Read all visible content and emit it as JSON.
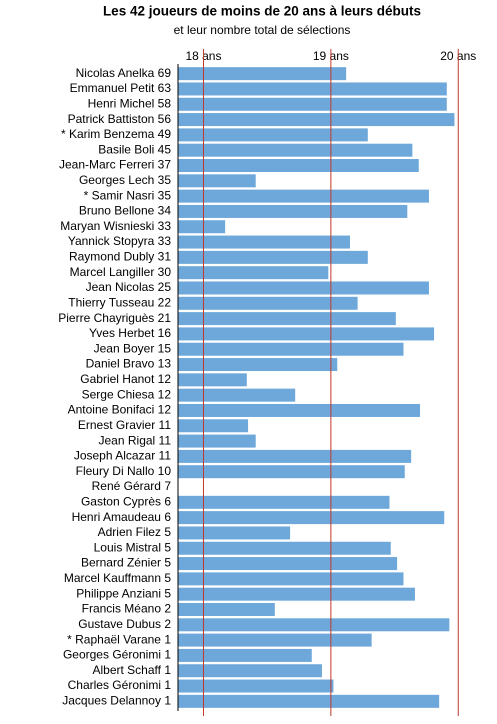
{
  "chart_data": {
    "type": "barh",
    "title": "Les 42 joueurs de moins de 20 ans à leurs débuts",
    "subtitle": "et leur nombre total de sélections",
    "categories": [
      "Nicolas Anelka 69",
      "Emmanuel Petit 63",
      "Henri Michel 58",
      "Patrick Battiston 56",
      "* Karim Benzema 49",
      "Basile Boli 45",
      "Jean-Marc Ferreri 37",
      "Georges Lech 35",
      "* Samir Nasri 35",
      "Bruno Bellone 34",
      "Maryan Wisnieski 33",
      "Yannick Stopyra 33",
      "Raymond Dubly 31",
      "Marcel Langiller 30",
      "Jean Nicolas 25",
      "Thierry Tusseau 22",
      "Pierre Chayriguès 21",
      "Yves Herbet 16",
      "Jean Boyer 15",
      "Daniel Bravo 13",
      "Gabriel Hanot 12",
      "Serge Chiesa 12",
      "Antoine Bonifaci 12",
      "Ernest Gravier 11",
      "Jean Rigal 11",
      "Joseph Alcazar 11",
      "Fleury Di Nallo 10",
      "René Gérard 7",
      "Gaston Cyprès 6",
      "Henri Amaudeau 6",
      "Adrien Filez 5",
      "Louis Mistral 5",
      "Bernard Zénier 5",
      "Marcel Kauffmann 5",
      "Philippe Anziani 5",
      "Francis Méano 2",
      "Gustave Dubus 2",
      "* Raphaël Varane 1",
      "Georges Géronimi 1",
      "Albert Schaff 1",
      "Charles Géronimi 1",
      "Jacques Delannoy 1"
    ],
    "values": [
      19.12,
      19.91,
      19.91,
      19.97,
      19.29,
      19.64,
      19.69,
      18.41,
      19.77,
      19.6,
      18.17,
      19.15,
      19.29,
      18.98,
      19.77,
      19.21,
      19.51,
      19.81,
      19.57,
      19.05,
      18.34,
      18.72,
      19.7,
      18.35,
      18.41,
      19.63,
      19.58,
      17.8,
      19.46,
      19.89,
      18.68,
      19.47,
      19.52,
      19.57,
      19.66,
      18.56,
      19.93,
      19.32,
      18.85,
      18.93,
      19.02,
      19.85
    ],
    "color": "#6ea8da",
    "xlim": [
      17.8,
      20.1
    ],
    "xticks": [
      {
        "value": 18,
        "label": "18 ans"
      },
      {
        "value": 19,
        "label": "19 ans"
      },
      {
        "value": 20,
        "label": "20 ans"
      }
    ],
    "grid": true,
    "grid_color": "#c0392b"
  }
}
